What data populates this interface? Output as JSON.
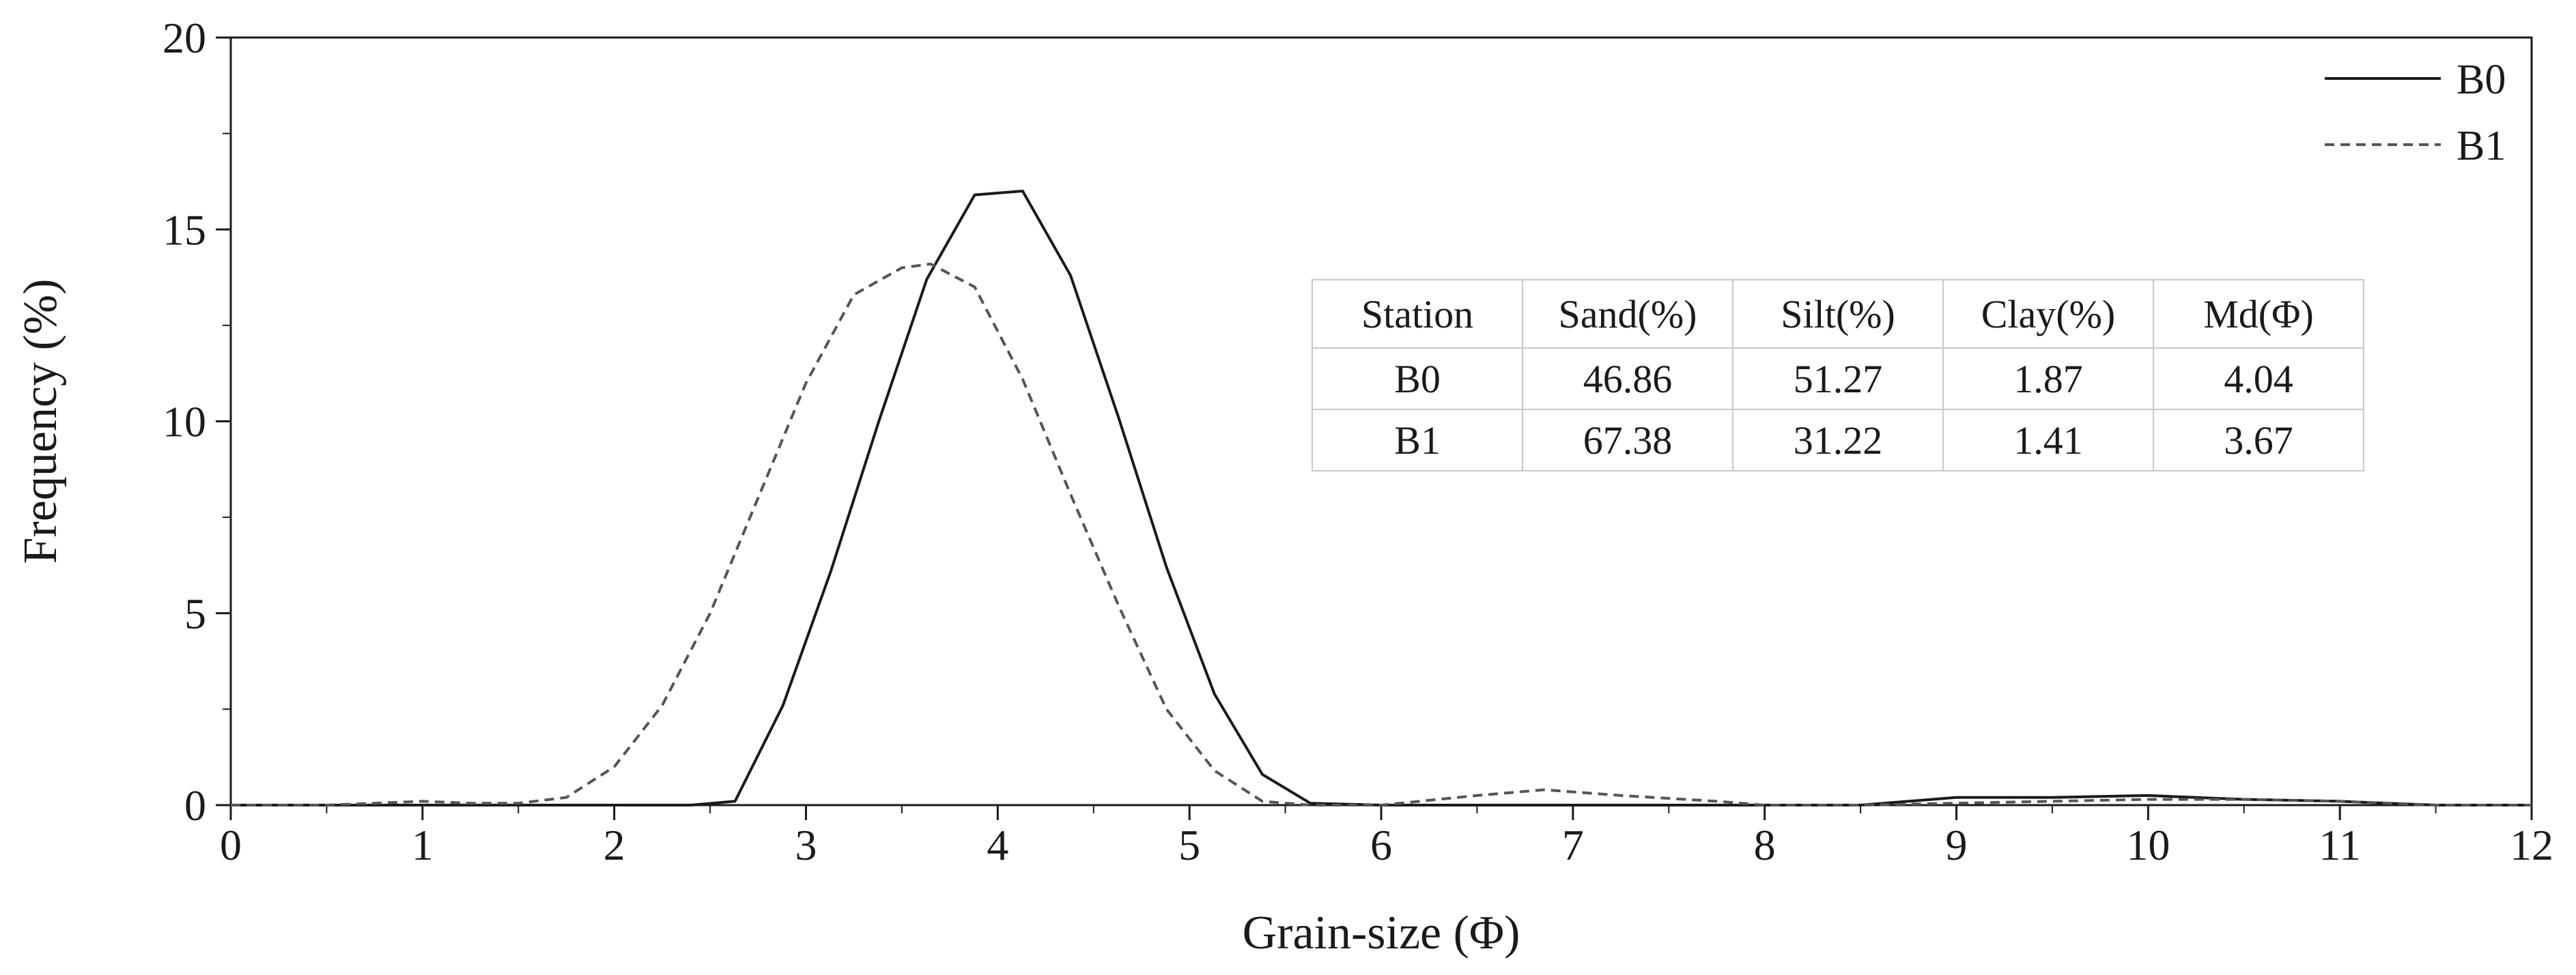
{
  "chart_data": {
    "type": "line",
    "title": "",
    "xlabel": "Grain-size (Φ)",
    "ylabel": "Frequency (%)",
    "xlim": [
      0,
      12
    ],
    "ylim": [
      0,
      20
    ],
    "xticks": [
      "0",
      "1",
      "2",
      "3",
      "4",
      "5",
      "6",
      "7",
      "8",
      "9",
      "10",
      "11",
      "12"
    ],
    "yticks": [
      "0",
      "5",
      "10",
      "15",
      "20"
    ],
    "grid": false,
    "legend_position": "top-right",
    "series": [
      {
        "name": "B0",
        "style": "solid",
        "color": "#1a1a1a",
        "x": [
          0,
          0.5,
          1,
          1.5,
          2,
          2.4,
          2.63,
          2.88,
          3.13,
          3.38,
          3.63,
          3.88,
          4.13,
          4.38,
          4.63,
          4.88,
          5.13,
          5.38,
          5.63,
          6.0,
          6.5,
          7.0,
          7.5,
          8.0,
          8.5,
          9.0,
          9.5,
          10.0,
          10.5,
          11.0,
          11.5,
          12.0
        ],
        "y": [
          0,
          0,
          0,
          0,
          0,
          0,
          0.1,
          2.6,
          6.1,
          10.0,
          13.7,
          15.9,
          16.0,
          13.8,
          10.1,
          6.2,
          2.9,
          0.8,
          0.05,
          0,
          0,
          0,
          0,
          0,
          0,
          0.2,
          0.2,
          0.25,
          0.15,
          0.1,
          0,
          0
        ]
      },
      {
        "name": "B1",
        "style": "dashed",
        "color": "#555555",
        "x": [
          0,
          0.5,
          0.75,
          1.0,
          1.25,
          1.5,
          1.75,
          2.0,
          2.25,
          2.5,
          2.75,
          3.0,
          3.25,
          3.5,
          3.65,
          3.88,
          4.13,
          4.38,
          4.63,
          4.88,
          5.13,
          5.38,
          5.63,
          6.0,
          6.5,
          6.85,
          7.25,
          7.75,
          8.0,
          8.5,
          9.0,
          9.5,
          10.0,
          10.5,
          11.0,
          11.5,
          12.0
        ],
        "y": [
          0,
          0,
          0.05,
          0.1,
          0.05,
          0.05,
          0.2,
          1.0,
          2.6,
          5.0,
          8.0,
          11.0,
          13.3,
          14.0,
          14.1,
          13.5,
          11.1,
          8.1,
          5.2,
          2.5,
          0.9,
          0.1,
          0,
          0,
          0.25,
          0.4,
          0.25,
          0.1,
          0,
          0,
          0.05,
          0.1,
          0.15,
          0.15,
          0.1,
          0,
          0
        ]
      }
    ],
    "table": {
      "headers": [
        "Station",
        "Sand(%)",
        "Silt(%)",
        "Clay(%)",
        "Md(Φ)"
      ],
      "rows": [
        [
          "B0",
          "46.86",
          "51.27",
          "1.87",
          "4.04"
        ],
        [
          "B1",
          "67.38",
          "31.22",
          "1.41",
          "3.67"
        ]
      ]
    }
  }
}
